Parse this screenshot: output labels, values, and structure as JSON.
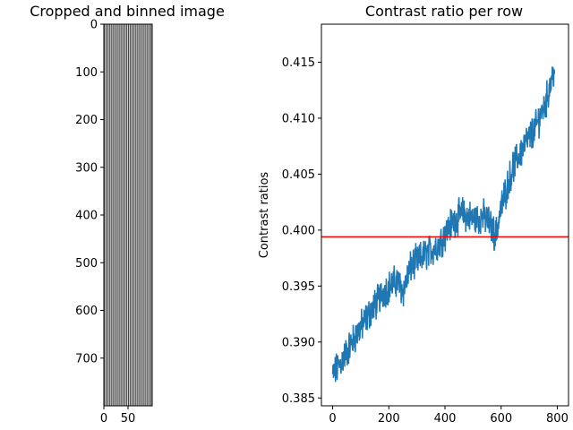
{
  "chart_data": [
    {
      "type": "heatmap",
      "title": "Cropped and binned image",
      "xlabel": "",
      "ylabel": "",
      "x_ticks": [
        0,
        50
      ],
      "y_ticks": [
        0,
        100,
        200,
        300,
        400,
        500,
        600,
        700
      ],
      "xlim": [
        0,
        100
      ],
      "ylim": [
        800,
        0
      ],
      "pattern": "vertical alternating light/dark gray stripes",
      "stripe_count": 26,
      "colormap": "gray"
    },
    {
      "type": "line",
      "title": "Contrast ratio per row",
      "xlabel": "",
      "ylabel": "Contrast ratios",
      "x_ticks": [
        0,
        200,
        400,
        600,
        800
      ],
      "y_ticks": [
        0.385,
        0.39,
        0.395,
        0.4,
        0.405,
        0.41,
        0.415
      ],
      "xlim": [
        -40,
        840
      ],
      "ylim": [
        0.3843,
        0.4184
      ],
      "series": [
        {
          "color": "#1f77b4",
          "noise": 0.0012,
          "anchors_x": [
            0,
            30,
            80,
            130,
            180,
            230,
            250,
            280,
            330,
            380,
            420,
            460,
            500,
            540,
            560,
            580,
            600,
            640,
            680,
            720,
            760,
            790
          ],
          "anchors_y": [
            0.387,
            0.3882,
            0.3905,
            0.3925,
            0.3945,
            0.3955,
            0.3945,
            0.3968,
            0.3978,
            0.3988,
            0.4005,
            0.4015,
            0.401,
            0.4012,
            0.4005,
            0.3995,
            0.402,
            0.4055,
            0.4075,
            0.409,
            0.4115,
            0.4145
          ]
        }
      ],
      "hline": {
        "y": 0.3994,
        "color": "#ff0000"
      }
    }
  ]
}
